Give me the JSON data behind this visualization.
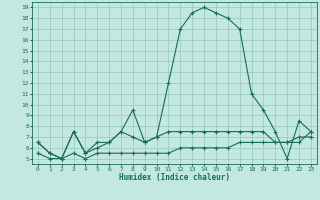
{
  "xlabel": "Humidex (Indice chaleur)",
  "ylabel": "",
  "xlim": [
    -0.5,
    23.5
  ],
  "ylim": [
    4.5,
    19.5
  ],
  "xticks": [
    0,
    1,
    2,
    3,
    4,
    5,
    6,
    7,
    8,
    9,
    10,
    11,
    12,
    13,
    14,
    15,
    16,
    17,
    18,
    19,
    20,
    21,
    22,
    23
  ],
  "yticks": [
    5,
    6,
    7,
    8,
    9,
    10,
    11,
    12,
    13,
    14,
    15,
    16,
    17,
    18,
    19
  ],
  "background_color": "#c2e8e0",
  "grid_color": "#96c8c0",
  "line_color": "#1a6b5a",
  "line1_x": [
    0,
    1,
    2,
    3,
    4,
    5,
    6,
    7,
    8,
    9,
    10,
    11,
    12,
    13,
    14,
    15,
    16,
    17,
    18,
    19,
    20,
    21,
    22,
    23
  ],
  "line1_y": [
    6.5,
    5.5,
    5.0,
    7.5,
    5.5,
    6.5,
    6.5,
    7.5,
    9.5,
    6.5,
    7.0,
    12.0,
    17.0,
    18.5,
    19.0,
    18.5,
    18.0,
    17.0,
    11.0,
    9.5,
    7.5,
    5.0,
    8.5,
    7.5
  ],
  "line2_x": [
    0,
    1,
    2,
    3,
    4,
    5,
    6,
    7,
    8,
    9,
    10,
    11,
    12,
    13,
    14,
    15,
    16,
    17,
    18,
    19,
    20,
    21,
    22,
    23
  ],
  "line2_y": [
    6.5,
    5.5,
    5.0,
    7.5,
    5.5,
    6.0,
    6.5,
    7.5,
    7.0,
    6.5,
    7.0,
    7.5,
    7.5,
    7.5,
    7.5,
    7.5,
    7.5,
    7.5,
    7.5,
    7.5,
    6.5,
    6.5,
    6.5,
    7.5
  ],
  "line3_x": [
    0,
    1,
    2,
    3,
    4,
    5,
    6,
    7,
    8,
    9,
    10,
    11,
    12,
    13,
    14,
    15,
    16,
    17,
    18,
    19,
    20,
    21,
    22,
    23
  ],
  "line3_y": [
    5.5,
    5.0,
    5.0,
    5.5,
    5.0,
    5.5,
    5.5,
    5.5,
    5.5,
    5.5,
    5.5,
    5.5,
    6.0,
    6.0,
    6.0,
    6.0,
    6.0,
    6.5,
    6.5,
    6.5,
    6.5,
    6.5,
    7.0,
    7.0
  ]
}
